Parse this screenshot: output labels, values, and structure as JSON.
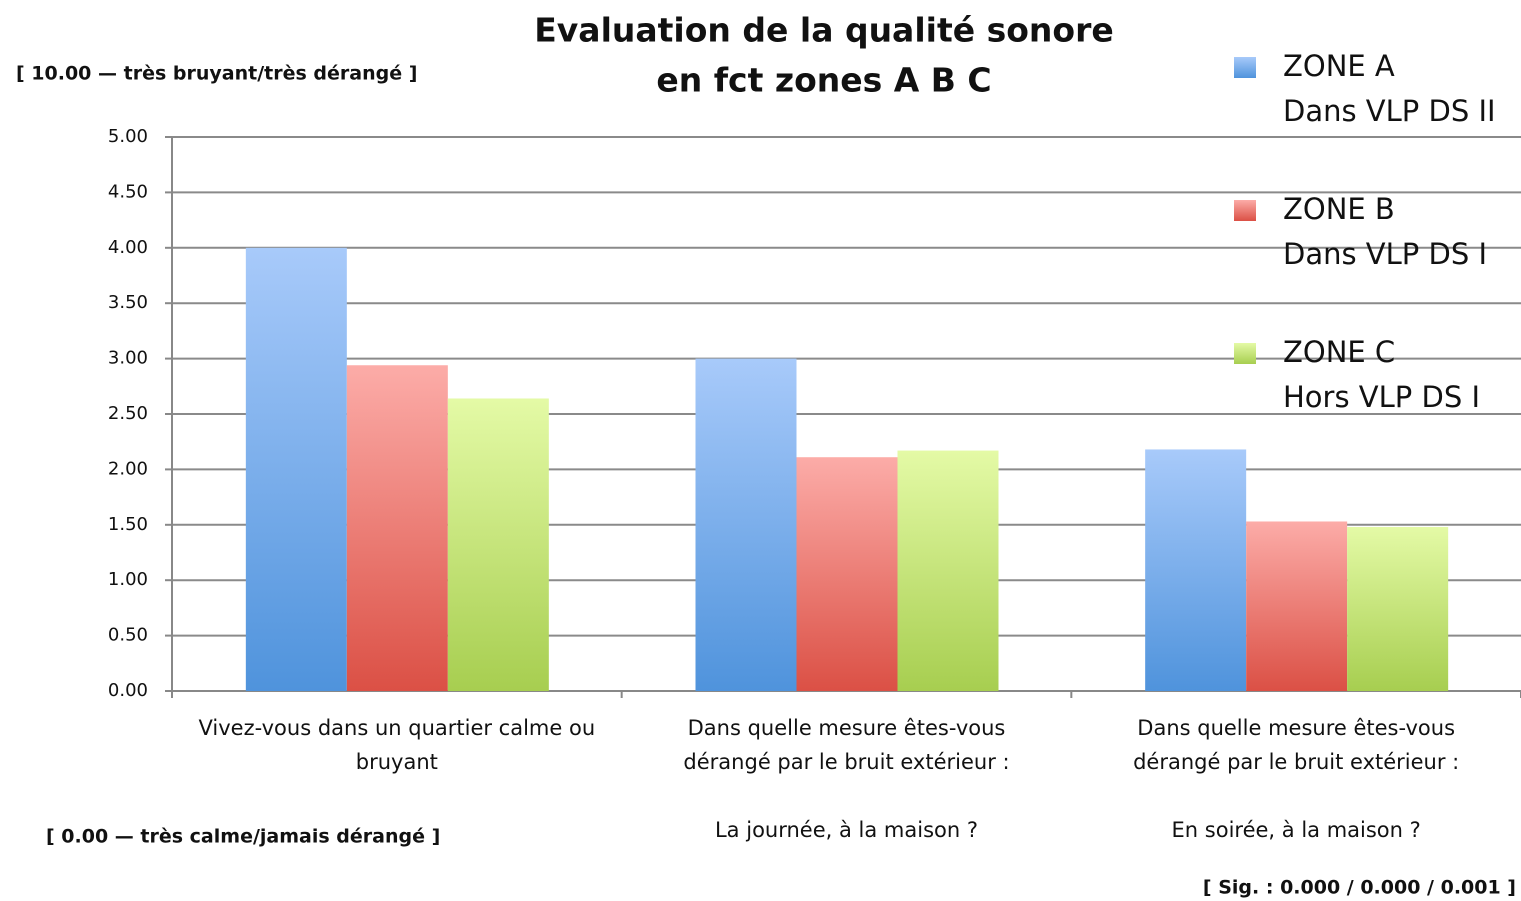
{
  "chart_data": {
    "type": "bar",
    "title": [
      "Evaluation de la qualité sonore",
      "en fct zones A B C"
    ],
    "annotations": [
      "[ 10.00 — très bruyant/très dérangé ]",
      "[ 0.00 — très calme/jamais dérangé ]",
      "[ Sig. : 0.000 / 0.000 / 0.001 ]"
    ],
    "categories": [
      [
        "Vivez-vous dans un quartier calme ou",
        "bruyant"
      ],
      [
        "Dans quelle mesure êtes-vous",
        "dérangé par le bruit extérieur :",
        "La journée, à la maison ?"
      ],
      [
        "Dans quelle mesure êtes-vous",
        "dérangé par le bruit extérieur :",
        "En soirée, à la maison ?"
      ]
    ],
    "series": [
      {
        "name": [
          "ZONE A",
          "Dans VLP DS II"
        ],
        "color": [
          "#a8cafa",
          "#4f93dc"
        ],
        "values": [
          4.0,
          3.0,
          2.18
        ]
      },
      {
        "name": [
          "ZONE B",
          "Dans VLP DS I"
        ],
        "color": [
          "#fcaca8",
          "#db5045"
        ],
        "values": [
          2.94,
          2.11,
          1.53
        ]
      },
      {
        "name": [
          "ZONE C",
          "Hors VLP DS I"
        ],
        "color": [
          "#e4faa6",
          "#a7ce50"
        ],
        "values": [
          2.64,
          2.17,
          1.48
        ]
      }
    ],
    "ylim": [
      0,
      5
    ],
    "yticks": [
      {
        "value": 0,
        "label": "0.00"
      },
      {
        "value": 0.5,
        "label": "0.50"
      },
      {
        "value": 1,
        "label": "1.00"
      },
      {
        "value": 1.5,
        "label": "1.50"
      },
      {
        "value": 2,
        "label": "2.00"
      },
      {
        "value": 2.5,
        "label": "2.50"
      },
      {
        "value": 3,
        "label": "3.00"
      },
      {
        "value": 3.5,
        "label": "3.50"
      },
      {
        "value": 4,
        "label": "4.00"
      },
      {
        "value": 4.5,
        "label": "4.50"
      },
      {
        "value": 5,
        "label": "5.00"
      }
    ],
    "grid": true,
    "legend": "right"
  }
}
